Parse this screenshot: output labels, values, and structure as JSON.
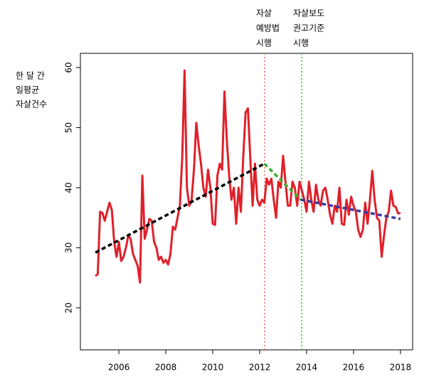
{
  "chart_data": {
    "type": "line",
    "ylabel": [
      "한 달 간",
      "일평균",
      "자살건수"
    ],
    "annotations": [
      {
        "lines": [
          "자살",
          "예방법",
          "시행"
        ],
        "x": 2012.21
      },
      {
        "lines": [
          "자살보도",
          "권고기준",
          "시행"
        ],
        "x": 2013.79
      }
    ],
    "xlim": [
      2004.36,
      2018.52
    ],
    "ylim": [
      13.0,
      62.37
    ],
    "xticks": [
      2006,
      2008,
      2010,
      2012,
      2014,
      2016,
      2018
    ],
    "yticks": [
      20,
      30,
      40,
      50,
      60
    ],
    "vlines": [
      {
        "x": 2012.21,
        "color": "#e8705a"
      },
      {
        "x": 2013.79,
        "color": "#33bb33"
      }
    ],
    "trend_lines": [
      {
        "x": [
          2005.0,
          2012.2
        ],
        "values": [
          29.2,
          44.0
        ],
        "color": "#000000"
      },
      {
        "x": [
          2012.2,
          2013.75
        ],
        "values": [
          44.0,
          38.0
        ],
        "color": "#44aa33"
      },
      {
        "x": [
          2013.75,
          2018.0
        ],
        "values": [
          38.0,
          34.8
        ],
        "color": "#3a3aa0"
      }
    ],
    "series": [
      {
        "color": "#e0202a",
        "x": [
          2005.0,
          2005.1,
          2005.2,
          2005.3,
          2005.4,
          2005.5,
          2005.6,
          2005.7,
          2005.8,
          2005.9,
          2006.0,
          2006.1,
          2006.2,
          2006.3,
          2006.4,
          2006.5,
          2006.6,
          2006.7,
          2006.8,
          2006.9,
          2007.0,
          2007.1,
          2007.2,
          2007.3,
          2007.4,
          2007.5,
          2007.6,
          2007.7,
          2007.8,
          2007.9,
          2008.0,
          2008.1,
          2008.2,
          2008.3,
          2008.4,
          2008.5,
          2008.6,
          2008.7,
          2008.8,
          2008.9,
          2009.0,
          2009.1,
          2009.2,
          2009.3,
          2009.4,
          2009.5,
          2009.6,
          2009.7,
          2009.8,
          2009.9,
          2010.0,
          2010.1,
          2010.2,
          2010.3,
          2010.4,
          2010.5,
          2010.6,
          2010.7,
          2010.8,
          2010.9,
          2011.0,
          2011.1,
          2011.2,
          2011.3,
          2011.4,
          2011.5,
          2011.6,
          2011.7,
          2011.8,
          2011.9,
          2012.0,
          2012.1,
          2012.2,
          2012.3,
          2012.4,
          2012.5,
          2012.6,
          2012.7,
          2012.8,
          2012.9,
          2013.0,
          2013.1,
          2013.2,
          2013.3,
          2013.4,
          2013.5,
          2013.6,
          2013.7,
          2013.8,
          2013.9,
          2014.0,
          2014.1,
          2014.2,
          2014.3,
          2014.4,
          2014.5,
          2014.6,
          2014.7,
          2014.8,
          2014.9,
          2015.0,
          2015.1,
          2015.2,
          2015.3,
          2015.4,
          2015.5,
          2015.6,
          2015.7,
          2015.8,
          2015.9,
          2016.0,
          2016.1,
          2016.2,
          2016.3,
          2016.4,
          2016.5,
          2016.6,
          2016.7,
          2016.8,
          2016.9,
          2017.0,
          2017.1,
          2017.2,
          2017.3,
          2017.4,
          2017.5,
          2017.6,
          2017.7,
          2017.8,
          2017.9,
          2018.0
        ],
        "values": [
          25.3,
          25.6,
          36,
          35.8,
          34.5,
          36,
          37.5,
          36.3,
          31,
          28.5,
          31,
          27.8,
          28.5,
          30,
          32,
          31.5,
          29,
          28,
          27,
          24.2,
          42,
          31.5,
          33,
          34.8,
          34.5,
          31,
          30,
          28,
          28.5,
          27.5,
          28,
          27.2,
          29,
          33.5,
          33,
          35,
          37,
          45,
          59.5,
          40,
          37,
          38,
          43,
          50.8,
          47,
          44,
          40,
          38.5,
          43,
          40,
          34,
          33.8,
          42,
          44,
          43,
          56,
          48,
          42,
          38,
          40,
          34,
          40,
          36,
          45,
          52.5,
          53.2,
          45,
          37,
          44,
          38,
          37,
          38,
          37.5,
          41.5,
          40.5,
          41.5,
          38,
          35,
          41,
          40,
          45.3,
          41,
          37,
          37,
          41,
          40,
          37,
          41,
          39.5,
          38,
          36,
          41,
          38,
          36,
          40.5,
          38,
          37,
          39.5,
          40,
          38,
          35.5,
          34,
          37,
          36,
          40,
          34,
          33.8,
          38,
          35.5,
          38.5,
          37,
          36,
          33,
          31.8,
          33,
          37.5,
          34,
          38,
          42.8,
          38,
          35,
          34.5,
          28.5,
          32,
          35,
          36,
          39.5,
          37,
          36.8,
          35.7,
          35.8
        ]
      }
    ]
  }
}
